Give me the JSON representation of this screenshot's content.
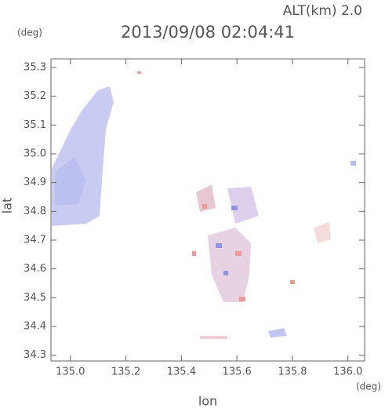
{
  "chart_data": {
    "type": "map",
    "annotation": "ALT(km) 2.0",
    "title": "2013/09/08 02:04:41",
    "y_unit": "(deg)",
    "x_unit": "(deg)",
    "ylabel": "lat",
    "xlabel": "lon",
    "xlim": [
      134.93,
      136.06
    ],
    "xticks": [
      {
        "value": 135,
        "label": "135.0"
      },
      135.2,
      135.4,
      135.6,
      135.8,
      {
        "value": 136,
        "label": "136.0"
      }
    ],
    "ylim": [
      34.28,
      35.33
    ],
    "yticks": [
      34.3,
      34.4,
      34.5,
      34.6,
      34.7,
      34.8,
      34.9,
      {
        "value": 35,
        "label": "35.0"
      },
      35.1,
      35.2,
      35.3
    ]
  }
}
